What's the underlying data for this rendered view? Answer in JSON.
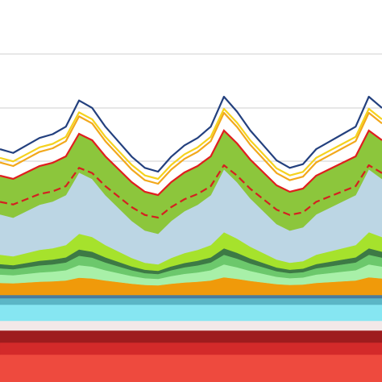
{
  "chart_data": {
    "type": "stacked-area",
    "x": [
      0,
      1,
      2,
      3,
      4,
      5,
      6,
      7,
      8,
      9,
      10,
      11,
      12,
      13,
      14,
      15,
      16,
      17,
      18,
      19,
      20,
      21,
      22,
      23,
      24,
      25,
      26,
      27,
      28,
      29
    ],
    "xlim": [
      0,
      29
    ],
    "ylim": [
      0,
      474
    ],
    "yticks": [
      274,
      340,
      407
    ],
    "grid": true,
    "series": [
      {
        "color": "#ee4a3e",
        "values": [
          34,
          34,
          34,
          34,
          34,
          34,
          34,
          34,
          34,
          34,
          34,
          34,
          34,
          34,
          34,
          34,
          34,
          34,
          34,
          34,
          34,
          34,
          34,
          34,
          34,
          34,
          34,
          34,
          34,
          34
        ]
      },
      {
        "color": "#d32a2a",
        "values": [
          15,
          15,
          15,
          15,
          15,
          15,
          15,
          15,
          15,
          15,
          15,
          15,
          15,
          15,
          15,
          15,
          15,
          15,
          15,
          15,
          15,
          15,
          15,
          15,
          15,
          15,
          15,
          15,
          15,
          15
        ]
      },
      {
        "color": "#9e1c1e",
        "values": [
          15,
          15,
          15,
          15,
          15,
          15,
          15,
          15,
          15,
          15,
          15,
          15,
          15,
          15,
          15,
          15,
          15,
          15,
          15,
          15,
          15,
          15,
          15,
          15,
          15,
          15,
          15,
          15,
          15,
          15
        ]
      },
      {
        "color": "#f3e8e8",
        "values": [
          12,
          12,
          12,
          12,
          12,
          12,
          12,
          12,
          12,
          12,
          12,
          12,
          12,
          12,
          12,
          12,
          12,
          12,
          12,
          12,
          12,
          12,
          12,
          12,
          12,
          12,
          12,
          12,
          12,
          12
        ]
      },
      {
        "color": "#86e6f2",
        "values": [
          20,
          20,
          20,
          20,
          20,
          20,
          20,
          20,
          20,
          20,
          20,
          20,
          20,
          20,
          20,
          20,
          20,
          20,
          20,
          20,
          20,
          20,
          20,
          20,
          20,
          20,
          20,
          20,
          20,
          20
        ]
      },
      {
        "color": "#5bb6c6",
        "values": [
          8,
          8,
          8,
          8,
          8,
          8,
          8,
          8,
          8,
          8,
          8,
          8,
          8,
          8,
          8,
          8,
          8,
          8,
          8,
          8,
          8,
          8,
          8,
          8,
          8,
          8,
          8,
          8,
          8,
          8
        ]
      },
      {
        "color": "#4a7c9c",
        "values": [
          4,
          4,
          4,
          4,
          4,
          4,
          4,
          4,
          4,
          4,
          4,
          4,
          4,
          4,
          4,
          4,
          4,
          4,
          4,
          4,
          4,
          4,
          4,
          4,
          4,
          4,
          4,
          4,
          4,
          4
        ]
      },
      {
        "color": "#f09a0a",
        "values": [
          15,
          14.5,
          15.5,
          16.5,
          17,
          18,
          21.5,
          20.5,
          18,
          16,
          14,
          12.5,
          12,
          14,
          15.5,
          16.5,
          18,
          22,
          20,
          17.5,
          15.5,
          13.5,
          12.5,
          13,
          15,
          16,
          17,
          18,
          22,
          20.5
        ]
      },
      {
        "color": "#a8f0a8",
        "values": [
          10.4,
          10,
          10.8,
          11.6,
          12,
          12.8,
          15.6,
          14.8,
          12.8,
          11.2,
          9.6,
          8.4,
          8,
          9.6,
          10.8,
          11.6,
          12.8,
          16,
          14.4,
          12.4,
          10.8,
          9.2,
          8.4,
          8.8,
          10.4,
          11.2,
          12,
          12.8,
          16,
          14.8
        ]
      },
      {
        "color": "#6cc86c",
        "values": [
          7.8,
          7.5,
          8.1,
          8.7,
          9,
          9.6,
          11.7,
          11.1,
          9.6,
          8.4,
          7.2,
          6.3,
          6,
          7.2,
          8.1,
          8.7,
          9.6,
          12,
          10.8,
          9.3,
          8.1,
          6.9,
          6.3,
          6.6,
          7.8,
          8.4,
          9,
          9.6,
          12,
          11.1
        ]
      },
      {
        "color": "#3d7a45",
        "values": [
          5.2,
          5,
          5.4,
          5.8,
          6,
          6.4,
          7.8,
          7.4,
          6.4,
          5.6,
          4.8,
          4.2,
          4,
          4.8,
          5.4,
          5.8,
          6.4,
          8,
          7.2,
          6.2,
          5.4,
          4.6,
          4.2,
          4.4,
          5.2,
          5.6,
          6,
          6.4,
          8,
          7.4
        ]
      },
      {
        "color": "#a6e22c",
        "values": [
          11.6,
          11,
          12.2,
          13.4,
          14,
          15.2,
          19.4,
          18.2,
          15.2,
          12.8,
          10.4,
          8.6,
          8,
          10.4,
          12.2,
          13.4,
          15.2,
          20,
          17.6,
          14.6,
          12.2,
          9.8,
          8.6,
          9.2,
          11.6,
          12.8,
          14,
          15.2,
          20,
          18.2
        ]
      },
      {
        "color": "#bcd6e4",
        "values": [
          50,
          48,
          52,
          56,
          58,
          62,
          76,
          72,
          62,
          54,
          46,
          40,
          38,
          46,
          52,
          56,
          62,
          78,
          70,
          60,
          52,
          44,
          40,
          42,
          50,
          54,
          58,
          62,
          78,
          72
        ]
      },
      {
        "color": "#8cc63c",
        "stroke": "#e01e1e",
        "values": [
          48,
          48,
          48,
          48,
          48,
          48,
          48,
          48,
          48,
          48,
          48,
          48,
          48,
          48,
          48,
          48,
          48,
          48,
          48,
          48,
          48,
          48,
          48,
          48,
          48,
          48,
          48,
          48,
          48,
          48
        ]
      }
    ],
    "line_series": [
      {
        "color": "#d42020",
        "dash": true,
        "values": [
          223.5,
          220.25,
          226.75,
          233.25,
          236.5,
          243,
          265.75,
          259.25,
          243,
          230,
          217,
          207.25,
          204,
          217,
          226.75,
          233.25,
          243,
          269,
          256,
          239.75,
          226.75,
          213.75,
          207.25,
          210.5,
          223.5,
          230,
          236.5,
          243,
          269,
          259.25
        ]
      },
      {
        "color": "#f2a81c",
        "values": [
          272.4,
          268,
          276.8,
          285.6,
          290,
          298.8,
          329.6,
          320.8,
          298.8,
          281.2,
          263.6,
          250.4,
          246,
          263.6,
          276.8,
          285.6,
          298.8,
          334,
          316.4,
          294.4,
          276.8,
          259.2,
          250.4,
          254.8,
          272.4,
          281.2,
          290,
          298.8,
          334,
          320.8
        ]
      },
      {
        "color": "#f5d21e",
        "values": [
          278.1,
          273.75,
          282.45,
          291.15,
          295.5,
          304.2,
          334.65,
          325.95,
          304.2,
          286.8,
          269.4,
          256.35,
          252,
          269.4,
          282.45,
          291.15,
          304.2,
          339,
          321.6,
          299.85,
          282.45,
          265.05,
          256.35,
          260.7,
          278.1,
          286.8,
          295.5,
          304.2,
          339,
          325.95
        ]
      },
      {
        "color": "#23407e",
        "values": [
          288.9,
          284.25,
          293.55,
          302.85,
          307.5,
          316.8,
          349.35,
          340.05,
          316.8,
          298.2,
          279.6,
          265.65,
          261,
          279.6,
          293.55,
          302.85,
          316.8,
          354,
          335.4,
          312.15,
          293.55,
          274.95,
          265.65,
          270.3,
          288.9,
          298.2,
          307.5,
          316.8,
          354,
          340.05
        ]
      }
    ]
  }
}
